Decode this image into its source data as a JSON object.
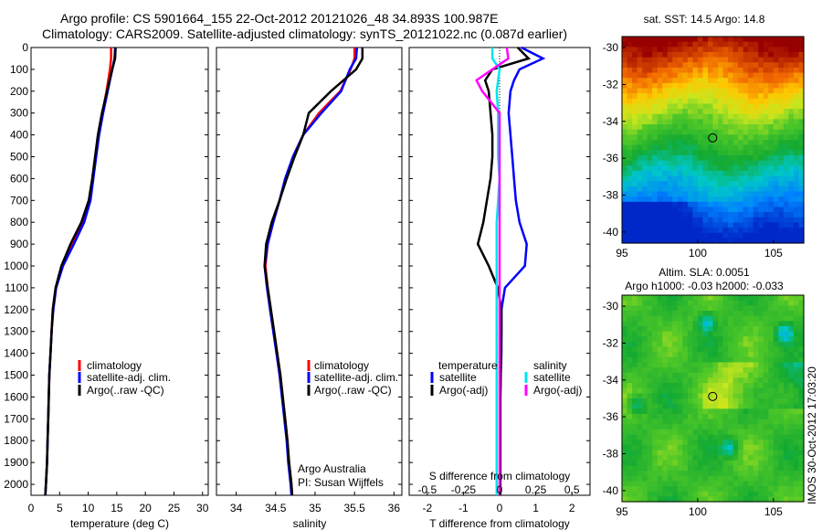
{
  "header": {
    "line1": "Argo profile: CS 5901664_155 22-Oct-2012 20121026_48 34.893S 100.987E",
    "line2": "Climatology: CARS2009. Satellite-adjusted climatology: synTS_20121022.nc (0.087d earlier)"
  },
  "colors": {
    "climatology": "#ff0000",
    "satellite": "#0000ff",
    "argo": "#000000",
    "salinity_satellite": "#00e5ee",
    "salinity_argo": "#ff00ff"
  },
  "credit": {
    "line1": "Argo Australia",
    "line2": "PI: Susan Wijffels"
  },
  "side_label": "IMOS 30-Oct-2012 17:03:20",
  "maps": {
    "sst_title": "sat. SST: 14.5 Argo: 14.8",
    "sla_title1": "Altim. SLA: 0.0051",
    "sla_title2": "Argo h1000: -0.03 h2000: -0.033",
    "float_position": {
      "lon": 100.987,
      "lat": -34.893
    },
    "x_ticks": [
      "95",
      "100",
      "105"
    ],
    "y_ticks": [
      "-30",
      "-32",
      "-34",
      "-36",
      "-38",
      "-40"
    ],
    "xlim": [
      95,
      107
    ],
    "ylim": [
      -40.6,
      -29.4
    ]
  },
  "chart_data": [
    {
      "type": "line",
      "name": "temperature",
      "xlabel": "temperature (deg C)",
      "xlim": [
        0,
        31
      ],
      "ylim": [
        0,
        2050
      ],
      "x_ticks": [
        0,
        5,
        10,
        15,
        20,
        25,
        30
      ],
      "y_ticks": [
        0,
        100,
        200,
        300,
        400,
        500,
        600,
        700,
        800,
        900,
        1000,
        1100,
        1200,
        1300,
        1400,
        1500,
        1600,
        1700,
        1800,
        1900,
        2000
      ],
      "legend": [
        "climatology",
        "satellite-adj. clim.",
        "Argo(..raw -QC)"
      ],
      "series": [
        {
          "name": "climatology",
          "depth": [
            0,
            50,
            100,
            200,
            300,
            400,
            500,
            600,
            700,
            800,
            900,
            1000,
            1100,
            1200,
            1300,
            1400,
            1500,
            1600,
            1700,
            1800,
            1900,
            2000,
            2050
          ],
          "values": [
            14.0,
            14.0,
            13.8,
            13.2,
            12.5,
            11.8,
            11.3,
            10.8,
            10.2,
            9.0,
            7.2,
            5.4,
            4.3,
            3.8,
            3.6,
            3.4,
            3.2,
            3.1,
            3.0,
            2.9,
            2.8,
            2.6,
            2.5
          ]
        },
        {
          "name": "satellite-adj. clim.",
          "depth": [
            0,
            50,
            100,
            200,
            300,
            400,
            500,
            600,
            700,
            800,
            900,
            1000,
            1100,
            1200,
            1300,
            1400,
            1500,
            1600,
            1700,
            1800,
            1900,
            2000,
            2050
          ],
          "values": [
            14.7,
            14.6,
            14.2,
            13.4,
            12.6,
            11.9,
            11.4,
            10.9,
            10.4,
            9.3,
            7.5,
            5.6,
            4.4,
            3.9,
            3.6,
            3.4,
            3.2,
            3.1,
            3.0,
            2.9,
            2.8,
            2.6,
            2.5
          ]
        },
        {
          "name": "Argo(..raw -QC)",
          "depth": [
            0,
            50,
            100,
            200,
            300,
            400,
            500,
            600,
            700,
            800,
            900,
            1000,
            1100,
            1200,
            1300,
            1400,
            1500,
            1600,
            1700,
            1800,
            1900,
            2000,
            2050
          ],
          "values": [
            14.8,
            14.7,
            14.2,
            13.3,
            12.4,
            11.7,
            11.2,
            10.7,
            10.1,
            8.8,
            6.9,
            5.3,
            4.3,
            3.8,
            3.6,
            3.4,
            3.2,
            3.1,
            3.0,
            2.9,
            2.8,
            2.6,
            2.5
          ]
        }
      ]
    },
    {
      "type": "line",
      "name": "salinity",
      "xlabel": "salinity",
      "xlim": [
        33.75,
        36.1
      ],
      "ylim": [
        0,
        2050
      ],
      "x_ticks": [
        34,
        34.5,
        35,
        35.5,
        36
      ],
      "x_tick_labels": [
        "34",
        "34.5",
        "35",
        "35.5",
        "36"
      ],
      "y_ticks": [
        0,
        100,
        200,
        300,
        400,
        500,
        600,
        700,
        800,
        900,
        1000,
        1100,
        1200,
        1300,
        1400,
        1500,
        1600,
        1700,
        1800,
        1900,
        2000
      ],
      "legend": [
        "climatology",
        "satellite-adj. clim.",
        "Argo(..raw -QC)"
      ],
      "series": [
        {
          "name": "climatology",
          "depth": [
            0,
            50,
            100,
            200,
            300,
            400,
            500,
            600,
            700,
            800,
            900,
            1000,
            1100,
            1200,
            1300,
            1400,
            1500,
            1600,
            1700,
            1800,
            1900,
            2000,
            2050
          ],
          "values": [
            35.5,
            35.5,
            35.45,
            35.32,
            35.05,
            34.85,
            34.72,
            34.63,
            34.55,
            34.47,
            34.4,
            34.37,
            34.4,
            34.44,
            34.48,
            34.52,
            34.56,
            34.59,
            34.62,
            34.65,
            34.67,
            34.7,
            34.71
          ]
        },
        {
          "name": "satellite-adj. clim.",
          "depth": [
            0,
            50,
            100,
            200,
            300,
            400,
            500,
            600,
            700,
            800,
            900,
            1000,
            1100,
            1200,
            1300,
            1400,
            1500,
            1600,
            1700,
            1800,
            1900,
            2000,
            2050
          ],
          "values": [
            35.53,
            35.52,
            35.44,
            35.33,
            35.08,
            34.85,
            34.72,
            34.62,
            34.55,
            34.47,
            34.4,
            34.36,
            34.39,
            34.43,
            34.47,
            34.51,
            34.55,
            34.58,
            34.61,
            34.64,
            34.66,
            34.69,
            34.7
          ]
        },
        {
          "name": "Argo(..raw -QC)",
          "depth": [
            0,
            50,
            100,
            200,
            300,
            400,
            500,
            600,
            700,
            800,
            900,
            1000,
            1100,
            1200,
            1300,
            1400,
            1500,
            1600,
            1700,
            1800,
            1900,
            2000,
            2050
          ],
          "values": [
            35.6,
            35.6,
            35.52,
            35.2,
            34.92,
            34.85,
            34.74,
            34.64,
            34.55,
            34.45,
            34.38,
            34.36,
            34.4,
            34.44,
            34.48,
            34.52,
            34.56,
            34.59,
            34.62,
            34.65,
            34.67,
            34.7,
            34.71
          ]
        }
      ]
    },
    {
      "type": "line",
      "name": "difference",
      "xlabel": "T difference from climatology",
      "xlabel_top": "S difference from climatology",
      "xlim": [
        -2.5,
        2.5
      ],
      "ylim": [
        0,
        2050
      ],
      "x_ticks": [
        -2,
        -1,
        0,
        1,
        2
      ],
      "top_ticks": [
        -0.5,
        -0.25,
        0,
        0.25,
        0.5
      ],
      "top_tick_labels": [
        "-0.5",
        "-0.25",
        "0",
        "0.25",
        "0.5"
      ],
      "top_scale": 4,
      "y_ticks": [
        0,
        100,
        200,
        300,
        400,
        500,
        600,
        700,
        800,
        900,
        1000,
        1100,
        1200,
        1300,
        1400,
        1500,
        1600,
        1700,
        1800,
        1900,
        2000
      ],
      "legend_temperature_title": "temperature",
      "legend_salinity_title": "salinity",
      "legend": [
        "satellite",
        "Argo(-adj)",
        "satellite",
        "Argo(-adj)"
      ],
      "series": [
        {
          "name": "satellite",
          "quantity": "temperature",
          "depth": [
            0,
            50,
            100,
            150,
            200,
            300,
            400,
            500,
            600,
            700,
            800,
            900,
            1000,
            1100,
            1200,
            1300,
            1400,
            1500,
            1600,
            1700,
            1800,
            1900,
            2000,
            2050
          ],
          "values": [
            0.6,
            1.2,
            0.55,
            0.4,
            0.3,
            0.25,
            0.3,
            0.35,
            0.4,
            0.45,
            0.55,
            0.75,
            0.7,
            0.15,
            0.05,
            0.05,
            0.05,
            0.03,
            0.02,
            0.02,
            0.02,
            0.02,
            0.02,
            0.02
          ]
        },
        {
          "name": "Argo(-adj)",
          "quantity": "temperature",
          "depth": [
            0,
            50,
            100,
            150,
            200,
            300,
            400,
            500,
            600,
            700,
            800,
            900,
            1000,
            1100,
            1200,
            1300,
            1400,
            1500,
            1600,
            1700,
            1800,
            1900,
            2000,
            2050
          ],
          "values": [
            0.5,
            0.8,
            -0.2,
            -0.4,
            -0.3,
            -0.25,
            -0.2,
            -0.2,
            -0.25,
            -0.35,
            -0.45,
            -0.6,
            -0.3,
            -0.05,
            0.05,
            0.05,
            0.04,
            0.03,
            0.02,
            0.02,
            0.02,
            0.02,
            0.02,
            0.02
          ]
        },
        {
          "name": "satellite",
          "quantity": "salinity",
          "depth": [
            0,
            50,
            100,
            150,
            200,
            300,
            400,
            500,
            600,
            700,
            800,
            900,
            1000,
            1100,
            1200,
            1300,
            1400,
            1500,
            1600,
            1700,
            1800,
            1900,
            2000,
            2050
          ],
          "values": [
            -0.05,
            -0.05,
            0.0,
            -0.01,
            -0.02,
            -0.01,
            -0.01,
            -0.01,
            0.0,
            -0.01,
            -0.02,
            -0.02,
            -0.02,
            -0.02,
            -0.02,
            -0.02,
            -0.02,
            -0.02,
            -0.02,
            -0.02,
            -0.02,
            -0.02,
            -0.02,
            -0.02
          ]
        },
        {
          "name": "Argo(-adj)",
          "quantity": "salinity",
          "depth": [
            0,
            50,
            100,
            150,
            200,
            300,
            400,
            500,
            600,
            700,
            800,
            900,
            1000,
            1100,
            1200,
            1300,
            1400,
            1500,
            1600,
            1700,
            1800,
            1900,
            2000,
            2050
          ],
          "values": [
            0.05,
            0.06,
            -0.05,
            -0.16,
            -0.12,
            0.0,
            0.0,
            0.0,
            0.0,
            0.0,
            0.0,
            0.0,
            0.0,
            0.0,
            0.0,
            0.0,
            0.0,
            0.0,
            0.0,
            0.0,
            0.0,
            0.0,
            0.0,
            0.0
          ]
        }
      ]
    }
  ]
}
